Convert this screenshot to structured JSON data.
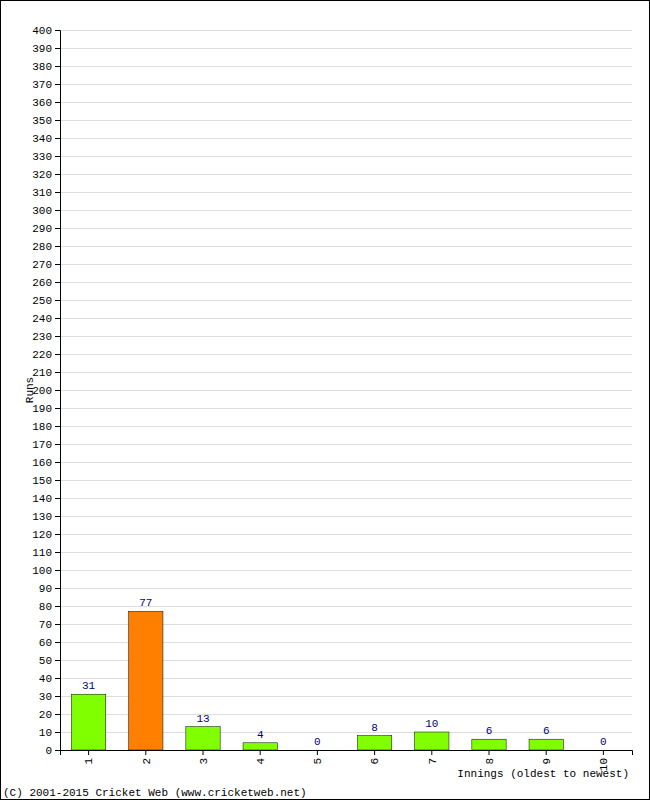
{
  "chart_data": {
    "type": "bar",
    "x_label": "Innings (oldest to newest)",
    "y_label": "Runs",
    "annotations": [
      "(C) 2001-2015 Cricket Web (www.cricketweb.net)"
    ],
    "categories": [
      "1",
      "2",
      "3",
      "4",
      "5",
      "6",
      "7",
      "8",
      "9",
      "10"
    ],
    "values": [
      31,
      77,
      13,
      4,
      0,
      8,
      10,
      6,
      6,
      0
    ],
    "colors": [
      "#80ff00",
      "#ff8000",
      "#80ff00",
      "#80ff00",
      "#80ff00",
      "#80ff00",
      "#80ff00",
      "#80ff00",
      "#80ff00",
      "#80ff00"
    ],
    "ylim": [
      0,
      400
    ],
    "yticks": [
      0,
      10,
      20,
      30,
      40,
      50,
      60,
      70,
      80,
      90,
      100,
      110,
      120,
      130,
      140,
      150,
      160,
      170,
      180,
      190,
      200,
      210,
      220,
      230,
      240,
      250,
      260,
      270,
      280,
      290,
      300,
      310,
      320,
      330,
      340,
      350,
      360,
      370,
      380,
      390,
      400
    ],
    "grid": true,
    "data_labels": true
  }
}
